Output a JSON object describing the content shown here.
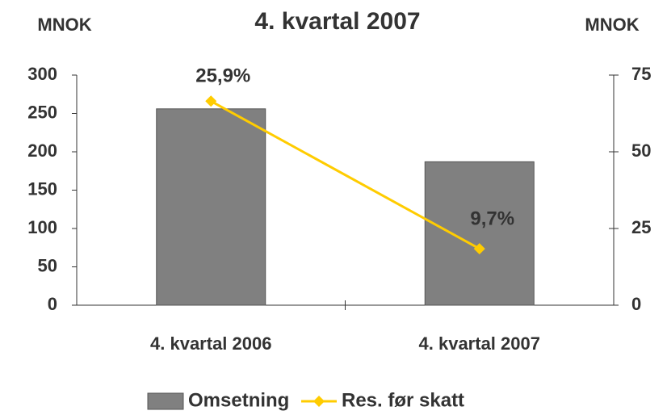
{
  "chart_data": {
    "type": "bar_line",
    "title": "4. kvartal 2007",
    "y_label": "MNOK",
    "y2_label": "MNOK",
    "categories": [
      "4. kvartal 2006",
      "4. kvartal 2007"
    ],
    "series": [
      {
        "name": "Omsetning",
        "type": "bar",
        "color": "#808080",
        "values": [
          256,
          187
        ]
      },
      {
        "name": "Res. før skatt",
        "type": "line",
        "axis": "y2",
        "color": "#FFCC00",
        "values": [
          66.5,
          18.4
        ]
      }
    ],
    "annotations": [
      "25,9%",
      "9,7%"
    ],
    "ylim": [
      0,
      300
    ],
    "yticks": [
      0,
      50,
      100,
      150,
      200,
      250,
      300
    ],
    "y2lim": [
      0,
      75
    ],
    "y2ticks": [
      0,
      25,
      50,
      75
    ],
    "legend": "bottom"
  }
}
